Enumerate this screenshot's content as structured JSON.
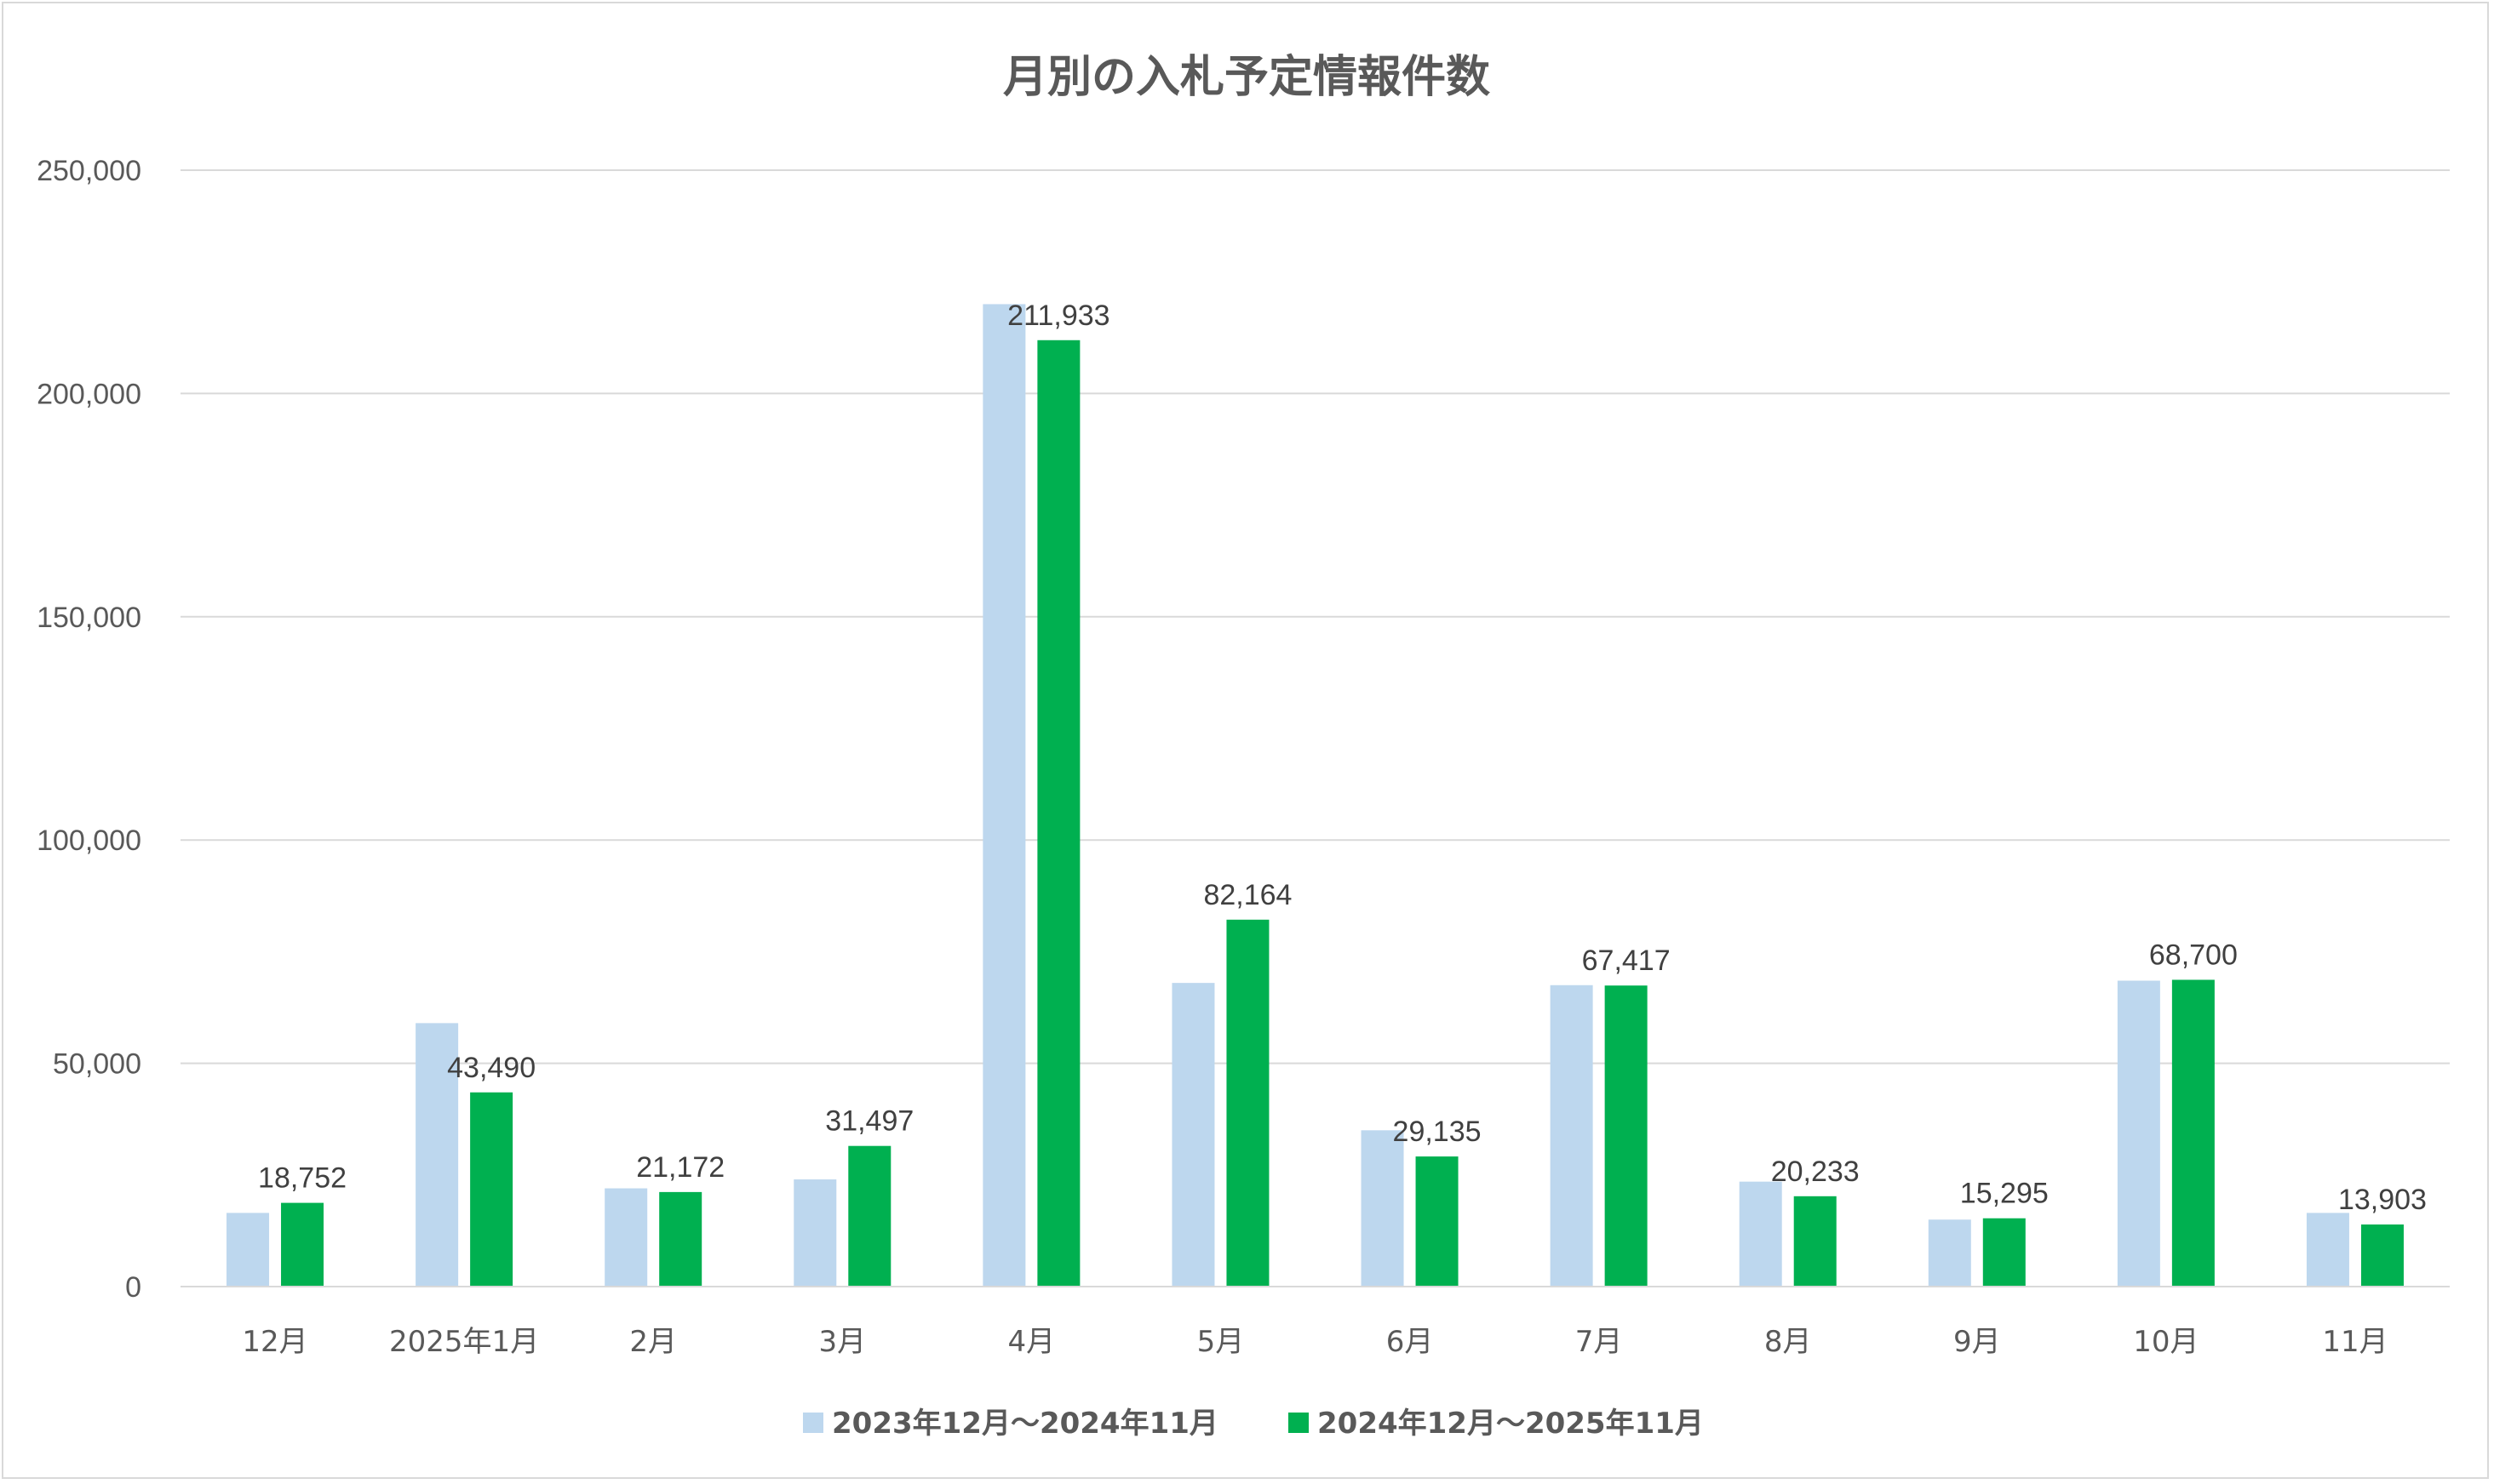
{
  "chart_data": {
    "type": "bar",
    "title": "月別の入札予定情報件数",
    "xlabel": "",
    "ylabel": "",
    "ylim": [
      0,
      250000
    ],
    "yticks": [
      0,
      50000,
      100000,
      150000,
      200000,
      250000
    ],
    "ytick_labels": [
      "0",
      "50,000",
      "100,000",
      "150,000",
      "200,000",
      "250,000"
    ],
    "grid": true,
    "legend_position": "bottom",
    "categories": [
      "12月",
      "2025年1月",
      "2月",
      "3月",
      "4月",
      "5月",
      "6月",
      "7月",
      "8月",
      "9月",
      "10月",
      "11月"
    ],
    "series": [
      {
        "name": "2023年12月～2024年11月",
        "color": "#bdd7ee",
        "values": [
          16500,
          59000,
          22000,
          24000,
          220000,
          68000,
          35000,
          67500,
          23500,
          15000,
          68500,
          16500
        ],
        "data_labels": []
      },
      {
        "name": "2024年12月～2025年11月",
        "color": "#00b050",
        "values": [
          18752,
          43490,
          21172,
          31497,
          211933,
          82164,
          29135,
          67417,
          20233,
          15295,
          68700,
          13903
        ],
        "data_labels": [
          "18,752",
          "43,490",
          "21,172",
          "31,497",
          "211,933",
          "82,164",
          "29,135",
          "67,417",
          "20,233",
          "15,295",
          "68,700",
          "13,903"
        ]
      }
    ]
  }
}
